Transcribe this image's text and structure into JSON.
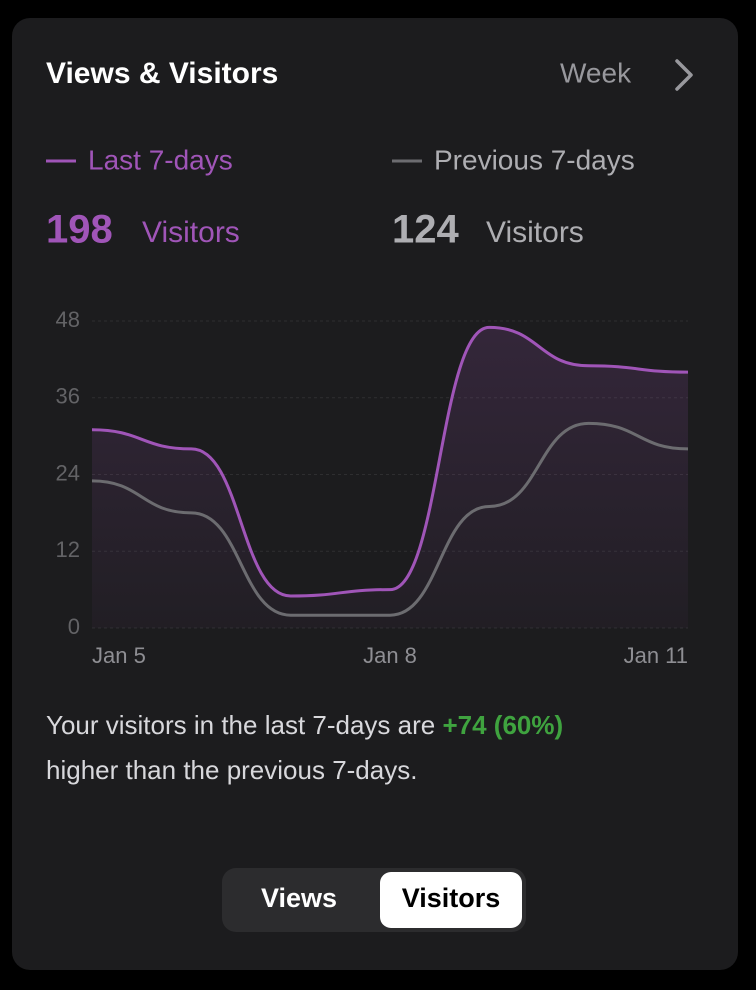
{
  "header": {
    "title": "Views & Visitors",
    "period": "Week"
  },
  "stats": [
    {
      "value": "198",
      "unit": "Visitors"
    },
    {
      "value": "124",
      "unit": "Visitors"
    }
  ],
  "chart_data": {
    "type": "line",
    "categories": [
      "Jan 5",
      null,
      null,
      "Jan 8",
      null,
      null,
      "Jan 11"
    ],
    "series": [
      {
        "name": "Last 7-days",
        "color": "#a055b8",
        "values": [
          31,
          28,
          5,
          6,
          47,
          41,
          40
        ]
      },
      {
        "name": "Previous 7-days",
        "color": "#6c6c70",
        "values": [
          23,
          18,
          2,
          2,
          19,
          32,
          28
        ]
      }
    ],
    "ylim": [
      0,
      48
    ],
    "yticks": [
      0,
      12,
      24,
      36,
      48
    ],
    "grid": true
  },
  "summary": {
    "prefix": "Your visitors in the last 7-days are ",
    "highlight": "+74 (60%)",
    "suffix": "higher than the previous 7-days."
  },
  "segments": [
    "Views",
    "Visitors"
  ]
}
